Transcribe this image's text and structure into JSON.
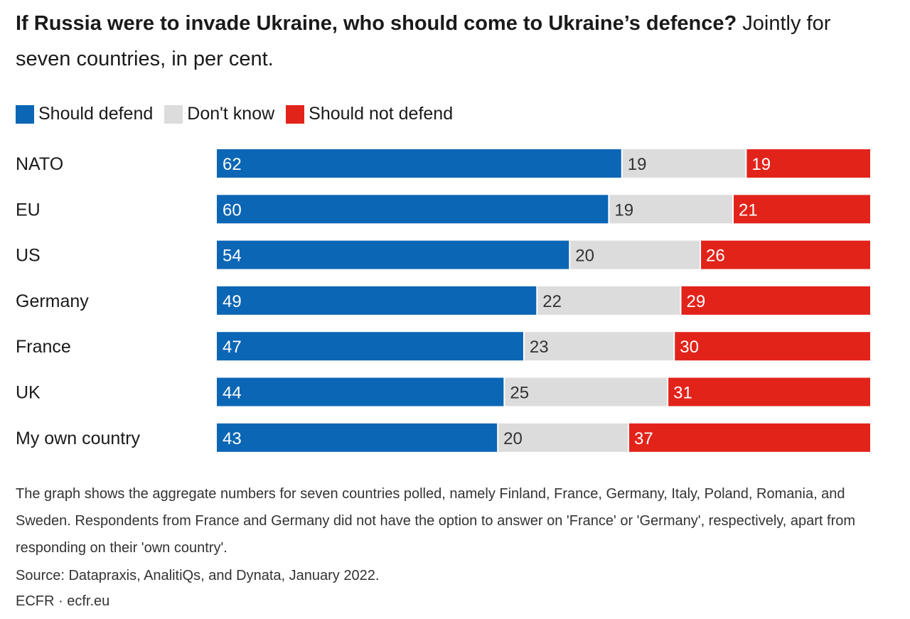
{
  "title_bold": "If Russia were to invade Ukraine, who should come to Ukraine’s defence?",
  "subtitle": "Jointly for seven countries, in per cent.",
  "chart_data": {
    "type": "bar",
    "stacked": true,
    "orientation": "horizontal",
    "categories": [
      "NATO",
      "EU",
      "US",
      "Germany",
      "France",
      "UK",
      "My own country"
    ],
    "series": [
      {
        "name": "Should defend",
        "color": "#0b66b5",
        "label_color": "#ffffff",
        "values": [
          62,
          60,
          54,
          49,
          47,
          44,
          43
        ]
      },
      {
        "name": "Don't know",
        "color": "#dcdcdc",
        "label_color": "#333333",
        "values": [
          19,
          19,
          20,
          22,
          23,
          25,
          20
        ]
      },
      {
        "name": "Should not defend",
        "color": "#e2231a",
        "label_color": "#ffffff",
        "values": [
          19,
          21,
          26,
          29,
          30,
          31,
          37
        ]
      }
    ],
    "xlim": [
      0,
      100
    ],
    "legend": "top-left",
    "grid": false
  },
  "note": "The graph shows the aggregate numbers for seven countries polled, namely Finland, France, Germany, Italy, Poland, Romania, and Sweden. Respondents from France and Germany did not have the option to answer on 'France' or 'Germany', respectively, apart from responding on their 'own country'.",
  "source": "Source: Datapraxis, AnalitiQs, and Dynata, January 2022.",
  "credit": "ECFR · ecfr.eu"
}
